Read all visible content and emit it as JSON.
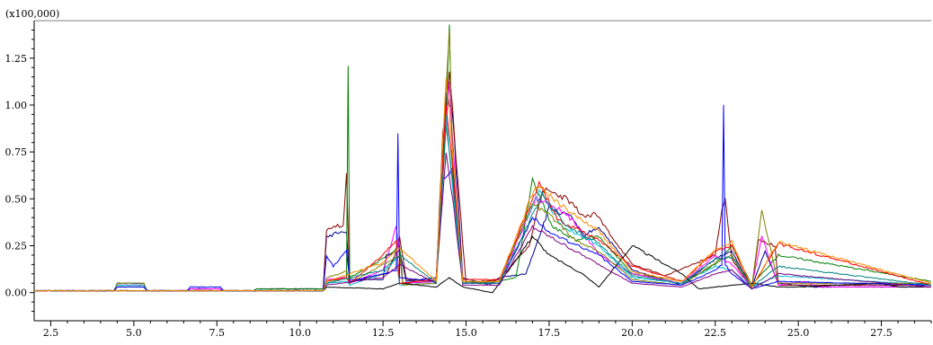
{
  "chart_data": {
    "type": "line",
    "title": "",
    "xlabel": "",
    "ylabel": "",
    "multiplier_label": "(x100,000)",
    "xlim": [
      2.0,
      29.0
    ],
    "ylim": [
      -0.15,
      1.45
    ],
    "x_ticks": [
      2.5,
      5.0,
      7.5,
      10.0,
      12.5,
      15.0,
      17.5,
      20.0,
      22.5,
      25.0,
      27.5
    ],
    "x_tick_labels": [
      "2.5",
      "5.0",
      "7.5",
      "10.0",
      "12.5",
      "15.0",
      "17.5",
      "20.0",
      "22.5",
      "25.0",
      "27.5"
    ],
    "y_ticks": [
      0.0,
      0.25,
      0.5,
      0.75,
      1.0,
      1.25
    ],
    "y_tick_labels": [
      "0.00",
      "0.25",
      "0.50",
      "0.75",
      "1.00",
      "1.25"
    ],
    "grid": false,
    "legend": "none",
    "series_colors": [
      "#00008b",
      "#8b0000",
      "#008000",
      "#ff00ff",
      "#00bcd4",
      "#808000",
      "#000000",
      "#0000ff",
      "#ff0000",
      "#800080",
      "#008080",
      "#ff8c00"
    ],
    "series": [
      {
        "x": [
          2.0,
          4.4,
          4.5,
          5.3,
          5.4,
          6.6,
          6.7,
          7.6,
          7.7,
          8.6,
          8.7,
          10.7,
          10.8,
          11.4,
          11.5,
          12.5,
          12.6,
          13.0,
          13.2,
          14.1,
          14.4,
          14.6,
          14.9,
          15.7,
          16.0,
          16.8,
          17.5,
          18.2,
          18.5,
          19.0,
          20.0,
          21.5,
          22.5,
          23.0,
          23.6,
          24.0,
          24.4,
          25.5,
          29.0
        ],
        "y": [
          0.01,
          0.01,
          0.05,
          0.05,
          0.01,
          0.01,
          0.02,
          0.02,
          0.01,
          0.01,
          0.02,
          0.02,
          0.3,
          0.33,
          0.07,
          0.07,
          0.2,
          0.22,
          0.06,
          0.08,
          1.05,
          0.95,
          0.08,
          0.04,
          0.08,
          0.1,
          0.45,
          0.4,
          0.3,
          0.35,
          0.12,
          0.04,
          0.18,
          0.22,
          0.03,
          0.22,
          0.05,
          0.03,
          0.03
        ]
      },
      {
        "x": [
          2.0,
          4.4,
          4.5,
          5.3,
          5.4,
          10.7,
          10.8,
          11.3,
          11.4,
          11.5,
          12.6,
          12.9,
          13.0,
          13.2,
          14.1,
          14.3,
          14.5,
          14.7,
          15.0,
          16.0,
          16.9,
          17.3,
          18.0,
          18.6,
          18.9,
          20.0,
          21.0,
          22.5,
          22.7,
          22.8,
          23.0,
          23.6,
          23.8,
          24.3,
          24.4,
          29.0
        ],
        "y": [
          0.01,
          0.01,
          0.04,
          0.04,
          0.01,
          0.01,
          0.34,
          0.36,
          0.62,
          0.06,
          0.1,
          0.22,
          0.3,
          0.07,
          0.06,
          0.85,
          1.2,
          0.7,
          0.05,
          0.07,
          0.25,
          0.55,
          0.5,
          0.4,
          0.42,
          0.15,
          0.09,
          0.2,
          0.45,
          0.5,
          0.18,
          0.02,
          0.28,
          0.25,
          0.04,
          0.04
        ]
      },
      {
        "x": [
          2.0,
          4.4,
          4.5,
          5.3,
          5.4,
          8.6,
          8.7,
          10.7,
          10.8,
          11.4,
          11.45,
          11.5,
          12.5,
          13.0,
          13.1,
          14.1,
          14.4,
          14.5,
          14.6,
          14.9,
          15.7,
          16.5,
          17.0,
          17.6,
          18.3,
          19.0,
          20.0,
          21.6,
          22.5,
          23.0,
          23.6,
          24.4,
          29.0
        ],
        "y": [
          0.01,
          0.01,
          0.03,
          0.03,
          0.01,
          0.01,
          0.02,
          0.02,
          0.06,
          0.08,
          1.18,
          0.08,
          0.18,
          0.25,
          0.05,
          0.06,
          0.9,
          1.43,
          0.6,
          0.06,
          0.05,
          0.08,
          0.6,
          0.35,
          0.28,
          0.3,
          0.1,
          0.06,
          0.15,
          0.25,
          0.04,
          0.2,
          0.06
        ]
      },
      {
        "x": [
          2.0,
          4.4,
          4.5,
          5.3,
          5.4,
          6.6,
          6.7,
          7.6,
          7.7,
          10.7,
          10.8,
          11.4,
          11.5,
          12.5,
          12.9,
          13.1,
          14.1,
          14.3,
          14.5,
          14.6,
          14.9,
          16.0,
          17.1,
          17.8,
          18.4,
          19.0,
          20.0,
          21.5,
          22.5,
          23.0,
          23.6,
          23.9,
          24.4,
          25.2,
          25.6,
          29.0
        ],
        "y": [
          0.01,
          0.01,
          0.04,
          0.04,
          0.01,
          0.01,
          0.02,
          0.02,
          0.01,
          0.01,
          0.07,
          0.08,
          0.05,
          0.12,
          0.35,
          0.05,
          0.06,
          0.7,
          1.1,
          0.8,
          0.05,
          0.05,
          0.5,
          0.45,
          0.35,
          0.2,
          0.1,
          0.05,
          0.2,
          0.15,
          0.03,
          0.3,
          0.04,
          0.06,
          0.03,
          0.03
        ]
      },
      {
        "x": [
          2.0,
          4.4,
          4.5,
          5.3,
          5.4,
          10.7,
          10.8,
          11.4,
          11.5,
          12.5,
          12.9,
          13.0,
          14.1,
          14.4,
          14.6,
          14.9,
          16.0,
          17.2,
          17.9,
          18.5,
          19.0,
          20.0,
          21.5,
          22.5,
          23.0,
          23.6,
          24.4,
          29.0
        ],
        "y": [
          0.01,
          0.01,
          0.04,
          0.04,
          0.01,
          0.01,
          0.05,
          0.06,
          0.04,
          0.1,
          0.18,
          0.04,
          0.05,
          0.95,
          0.55,
          0.05,
          0.06,
          0.55,
          0.35,
          0.3,
          0.25,
          0.08,
          0.05,
          0.14,
          0.12,
          0.03,
          0.09,
          0.04
        ]
      },
      {
        "x": [
          2.0,
          4.4,
          4.5,
          5.3,
          5.4,
          10.7,
          10.8,
          11.2,
          11.4,
          11.5,
          12.5,
          13.0,
          13.1,
          14.1,
          14.3,
          14.5,
          14.6,
          14.9,
          16.0,
          17.0,
          17.6,
          18.3,
          19.0,
          20.0,
          21.5,
          22.5,
          23.0,
          23.6,
          23.9,
          24.4,
          29.0
        ],
        "y": [
          0.01,
          0.01,
          0.05,
          0.05,
          0.01,
          0.01,
          0.08,
          0.1,
          0.12,
          0.05,
          0.15,
          0.2,
          0.04,
          0.05,
          0.8,
          1.38,
          0.7,
          0.05,
          0.06,
          0.48,
          0.4,
          0.28,
          0.22,
          0.07,
          0.04,
          0.16,
          0.2,
          0.03,
          0.44,
          0.05,
          0.05
        ]
      },
      {
        "x": [
          2.0,
          10.7,
          10.8,
          12.5,
          13.0,
          14.1,
          14.5,
          14.9,
          15.8,
          16.2,
          16.8,
          17.0,
          17.5,
          18.5,
          19.0,
          20.0,
          20.5,
          21.5,
          22.0,
          23.6,
          24.4,
          25.0,
          27.5,
          28.0,
          29.0
        ],
        "y": [
          0.01,
          0.01,
          0.03,
          0.02,
          0.05,
          0.03,
          0.08,
          0.03,
          0.0,
          0.1,
          0.25,
          0.3,
          0.2,
          0.1,
          0.03,
          0.25,
          0.2,
          0.1,
          0.02,
          0.05,
          0.03,
          0.03,
          0.05,
          0.03,
          0.03
        ]
      },
      {
        "x": [
          2.0,
          4.4,
          4.5,
          5.3,
          5.4,
          6.6,
          6.7,
          7.6,
          7.7,
          10.7,
          10.8,
          11.0,
          11.4,
          11.5,
          12.5,
          12.9,
          12.95,
          13.0,
          14.1,
          14.3,
          14.6,
          14.9,
          16.0,
          17.0,
          17.7,
          18.4,
          19.0,
          20.0,
          21.5,
          22.5,
          22.7,
          22.75,
          22.8,
          23.0,
          23.6,
          24.4,
          29.0
        ],
        "y": [
          0.01,
          0.01,
          0.03,
          0.03,
          0.01,
          0.01,
          0.03,
          0.03,
          0.01,
          0.01,
          0.2,
          0.14,
          0.22,
          0.06,
          0.1,
          0.12,
          0.84,
          0.08,
          0.06,
          0.6,
          0.65,
          0.05,
          0.05,
          0.4,
          0.3,
          0.25,
          0.2,
          0.06,
          0.04,
          0.12,
          0.15,
          1.02,
          0.15,
          0.1,
          0.02,
          0.06,
          0.04
        ]
      },
      {
        "x": [
          2.0,
          10.7,
          10.8,
          11.4,
          11.5,
          12.5,
          12.9,
          13.0,
          14.1,
          14.4,
          14.6,
          14.9,
          16.0,
          17.2,
          17.8,
          18.6,
          19.0,
          20.0,
          21.5,
          22.5,
          23.0,
          23.6,
          24.4,
          29.0
        ],
        "y": [
          0.01,
          0.01,
          0.06,
          0.08,
          0.05,
          0.2,
          0.28,
          0.05,
          0.07,
          1.0,
          0.65,
          0.07,
          0.07,
          0.58,
          0.38,
          0.32,
          0.28,
          0.14,
          0.06,
          0.22,
          0.25,
          0.03,
          0.26,
          0.04
        ]
      },
      {
        "x": [
          2.0,
          10.7,
          10.8,
          12.5,
          13.0,
          14.1,
          14.4,
          14.6,
          14.9,
          16.0,
          17.0,
          18.0,
          19.0,
          20.0,
          21.5,
          22.5,
          23.0,
          23.6,
          24.4,
          29.0
        ],
        "y": [
          0.01,
          0.01,
          0.04,
          0.08,
          0.15,
          0.05,
          0.75,
          0.5,
          0.04,
          0.04,
          0.35,
          0.25,
          0.15,
          0.05,
          0.03,
          0.1,
          0.12,
          0.02,
          0.1,
          0.03
        ]
      },
      {
        "x": [
          2.0,
          10.7,
          10.8,
          12.5,
          13.0,
          14.1,
          14.4,
          14.6,
          14.9,
          16.0,
          17.3,
          18.0,
          19.0,
          20.0,
          21.5,
          22.5,
          23.0,
          23.6,
          24.4,
          29.0
        ],
        "y": [
          0.01,
          0.01,
          0.05,
          0.12,
          0.2,
          0.05,
          0.9,
          0.6,
          0.05,
          0.05,
          0.52,
          0.36,
          0.26,
          0.09,
          0.05,
          0.18,
          0.19,
          0.03,
          0.14,
          0.04
        ]
      },
      {
        "x": [
          2.0,
          10.7,
          10.8,
          12.5,
          13.0,
          14.1,
          14.4,
          14.6,
          14.9,
          16.0,
          17.1,
          18.2,
          19.0,
          20.0,
          21.5,
          22.5,
          23.0,
          23.6,
          24.4,
          29.0
        ],
        "y": [
          0.01,
          0.01,
          0.06,
          0.16,
          0.24,
          0.06,
          1.15,
          0.75,
          0.06,
          0.06,
          0.58,
          0.42,
          0.33,
          0.11,
          0.06,
          0.23,
          0.27,
          0.03,
          0.27,
          0.05
        ]
      }
    ]
  }
}
